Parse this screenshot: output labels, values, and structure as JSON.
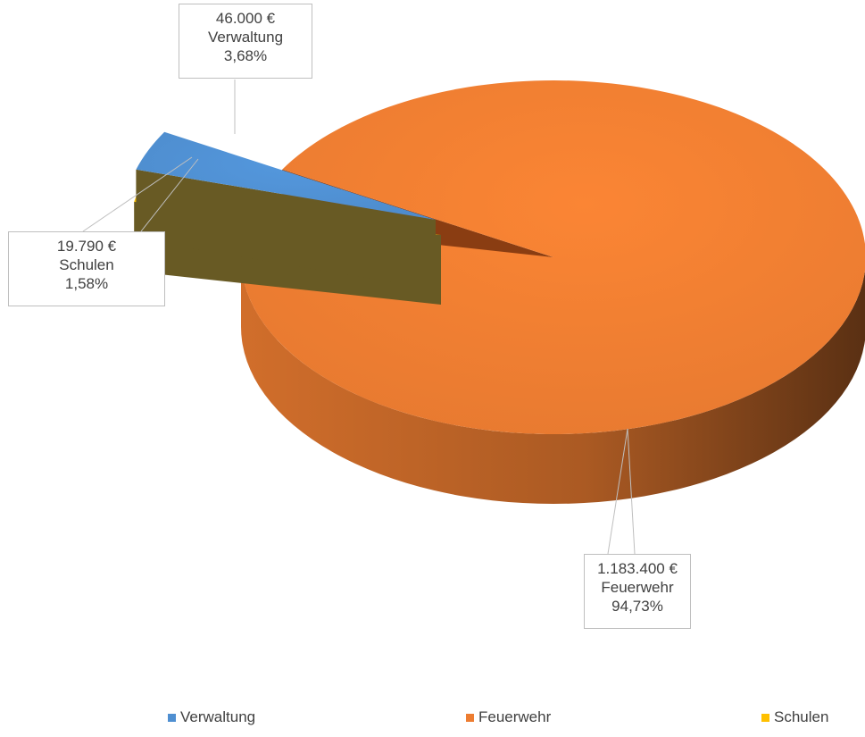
{
  "chart_data": {
    "type": "pie",
    "style": "3d-exploded",
    "currency": "€",
    "slices": [
      {
        "name": "Verwaltung",
        "value": "46.000 €",
        "percent": "3,68%",
        "amount": 46000,
        "share": 3.68,
        "color": "#4f8fd1"
      },
      {
        "name": "Feuerwehr",
        "value": "1.183.400 €",
        "percent": "94,73%",
        "amount": 1183400,
        "share": 94.73,
        "color": "#ed7d31"
      },
      {
        "name": "Schulen",
        "value": "19.790 €",
        "percent": "1,58%",
        "amount": 19790,
        "share": 1.58,
        "color": "#ffc000"
      }
    ],
    "legend": {
      "position": "bottom",
      "items": [
        "Verwaltung",
        "Feuerwehr",
        "Schulen"
      ]
    }
  }
}
